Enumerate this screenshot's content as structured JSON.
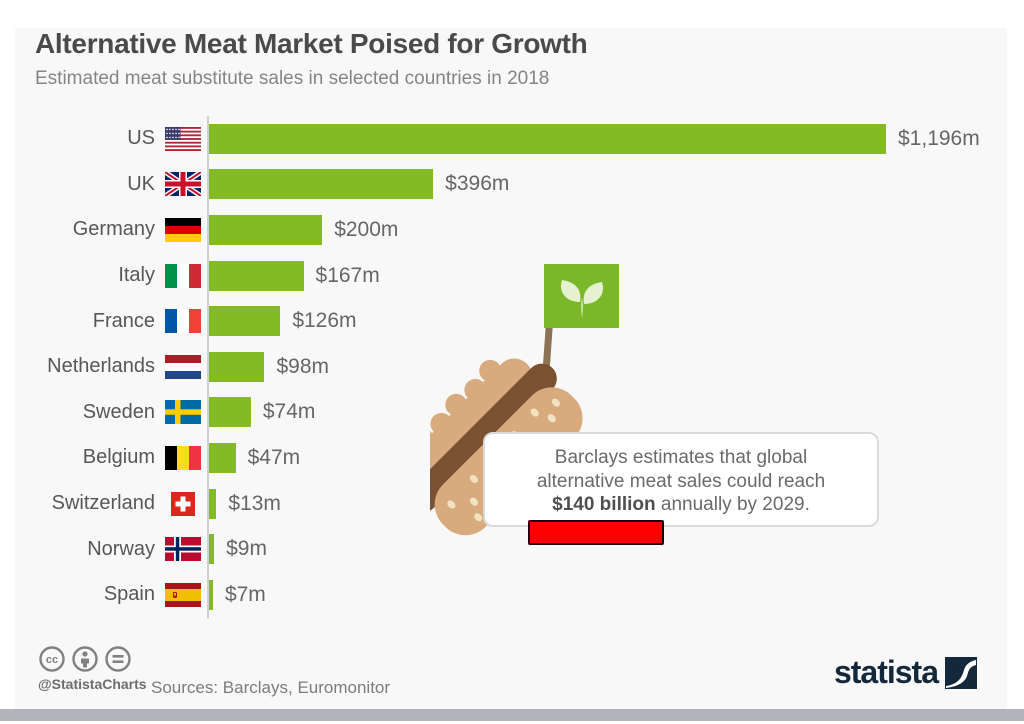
{
  "header": {
    "title": "Alternative Meat Market Poised for Growth",
    "subtitle": "Estimated meat substitute sales in selected countries in 2018"
  },
  "chart_data": {
    "type": "bar",
    "orientation": "horizontal",
    "title": "Alternative Meat Market Poised for Growth",
    "subtitle": "Estimated meat substitute sales in selected countries in 2018",
    "unit": "million US dollars",
    "categories": [
      "US",
      "UK",
      "Germany",
      "Italy",
      "France",
      "Netherlands",
      "Sweden",
      "Belgium",
      "Switzerland",
      "Norway",
      "Spain"
    ],
    "values": [
      1196,
      396,
      200,
      167,
      126,
      98,
      74,
      47,
      13,
      9,
      7
    ],
    "value_labels": [
      "$1,196m",
      "$396m",
      "$200m",
      "$167m",
      "$126m",
      "$98m",
      "$74m",
      "$47m",
      "$13m",
      "$9m",
      "$7m"
    ],
    "flags": [
      "us",
      "uk",
      "de",
      "it",
      "fr",
      "nl",
      "se",
      "be",
      "ch",
      "no",
      "es"
    ],
    "xlim": [
      0,
      1196
    ],
    "grid": false,
    "legend": false
  },
  "annotation": {
    "line1": "Barclays estimates that global",
    "line2": "alternative meat sales could reach",
    "bold": "$140 billion",
    "rest": " annually by 2029."
  },
  "footer": {
    "handle": "@StatistaCharts",
    "sources": "Sources: Barclays, Euromonitor",
    "brand": "statista"
  },
  "colors": {
    "bar_green": "#84bb25",
    "flag_green": "#7ab82a",
    "canvas_background": "#f8f8f8",
    "redaction_red": "#ff0000",
    "brand_navy": "#14283c",
    "bottom_bar_gray": "#b1b4bb"
  }
}
